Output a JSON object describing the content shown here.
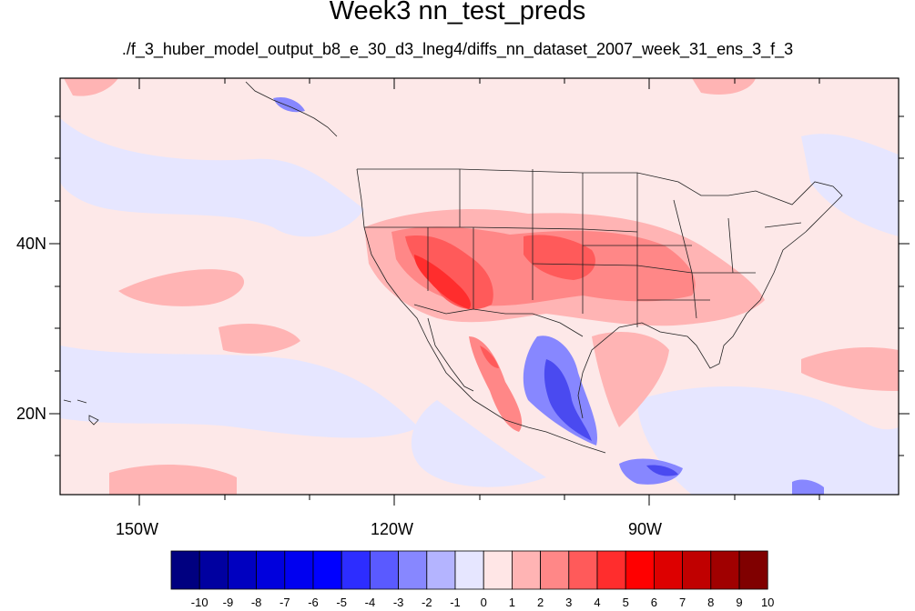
{
  "title": "Week3 nn_test_preds",
  "subtitle": "./f_3_huber_model_output_b8_e_30_d3_lneg4/diffs_nn_dataset_2007_week_31_ens_3_f_3",
  "map": {
    "lat_labels": [
      "40N",
      "20N"
    ],
    "lon_labels": [
      "150W",
      "120W",
      "90W"
    ],
    "ocean_background": "#fde8e8"
  },
  "colorbar": {
    "labels": [
      "-10",
      "-9",
      "-8",
      "-7",
      "-6",
      "-5",
      "-4",
      "-3",
      "-2",
      "-1",
      "0",
      "1",
      "2",
      "3",
      "4",
      "5",
      "6",
      "7",
      "8",
      "9",
      "10"
    ],
    "colors": [
      "#000080",
      "#0000a0",
      "#0000c0",
      "#0000dd",
      "#0000f0",
      "#0000ff",
      "#2d2dff",
      "#5a5aff",
      "#8787ff",
      "#b4b4ff",
      "#e6e6ff",
      "#ffe6e6",
      "#ffb4b4",
      "#ff8787",
      "#ff5a5a",
      "#ff2d2d",
      "#ff0000",
      "#dd0000",
      "#c00000",
      "#a00000",
      "#800000"
    ]
  }
}
